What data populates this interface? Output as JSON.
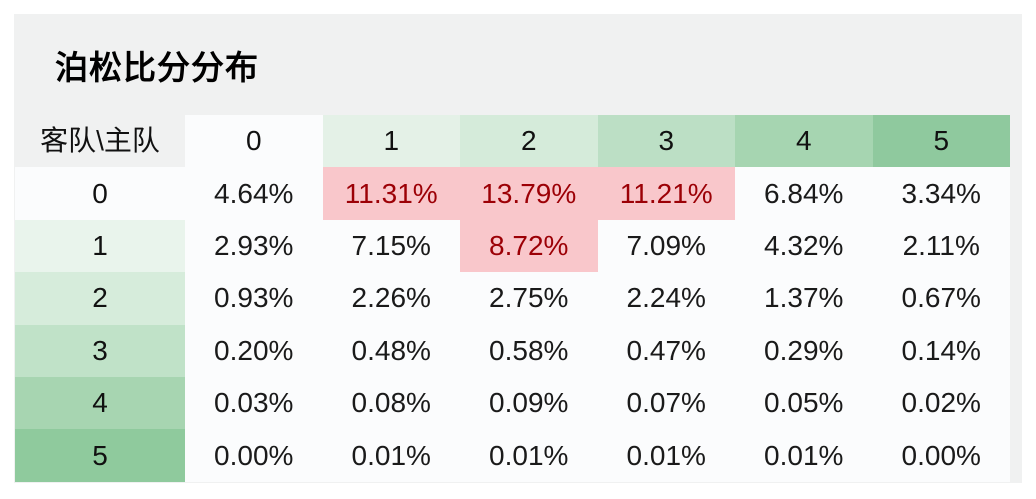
{
  "card": {
    "title": "泊松比分分布"
  },
  "chart_data": {
    "type": "heatmap",
    "title": "泊松比分分布",
    "corner_header": "客队\\主队",
    "row_axis": "客队",
    "col_axis": "主队",
    "columns": [
      "0",
      "1",
      "2",
      "3",
      "4",
      "5"
    ],
    "rows": [
      "0",
      "1",
      "2",
      "3",
      "4",
      "5"
    ],
    "values": [
      [
        "4.64%",
        "11.31%",
        "13.79%",
        "11.21%",
        "6.84%",
        "3.34%"
      ],
      [
        "2.93%",
        "7.15%",
        "8.72%",
        "7.09%",
        "4.32%",
        "2.11%"
      ],
      [
        "0.93%",
        "2.26%",
        "2.75%",
        "2.24%",
        "1.37%",
        "0.67%"
      ],
      [
        "0.20%",
        "0.48%",
        "0.58%",
        "0.47%",
        "0.29%",
        "0.14%"
      ],
      [
        "0.03%",
        "0.08%",
        "0.09%",
        "0.07%",
        "0.05%",
        "0.02%"
      ],
      [
        "0.00%",
        "0.01%",
        "0.01%",
        "0.01%",
        "0.01%",
        "0.00%"
      ]
    ],
    "highlighted_cells": [
      [
        0,
        1
      ],
      [
        0,
        2
      ],
      [
        0,
        3
      ],
      [
        1,
        2
      ]
    ],
    "legend": "none",
    "grid": "off"
  },
  "colors": {
    "page_bg": "#ffffff",
    "card_bg": "#f0f1f1",
    "cell_bg": "#fbfcfd",
    "cell_text": "#1a1a1a",
    "header_text": "#111111",
    "title_text": "#000000",
    "highlight_bg": "#f9c7cb",
    "highlight_text": "#9c0006",
    "col_header_fills": [
      "#fbfcfd",
      "#e4f1e7",
      "#d5ebda",
      "#bcdfc5",
      "#a6d5b1",
      "#8fc99e"
    ],
    "row_header_fills": [
      "#fbfcfd",
      "#e9f4ec",
      "#d6ecdb",
      "#c0e2c8",
      "#a7d5b1",
      "#8fca9d"
    ]
  }
}
